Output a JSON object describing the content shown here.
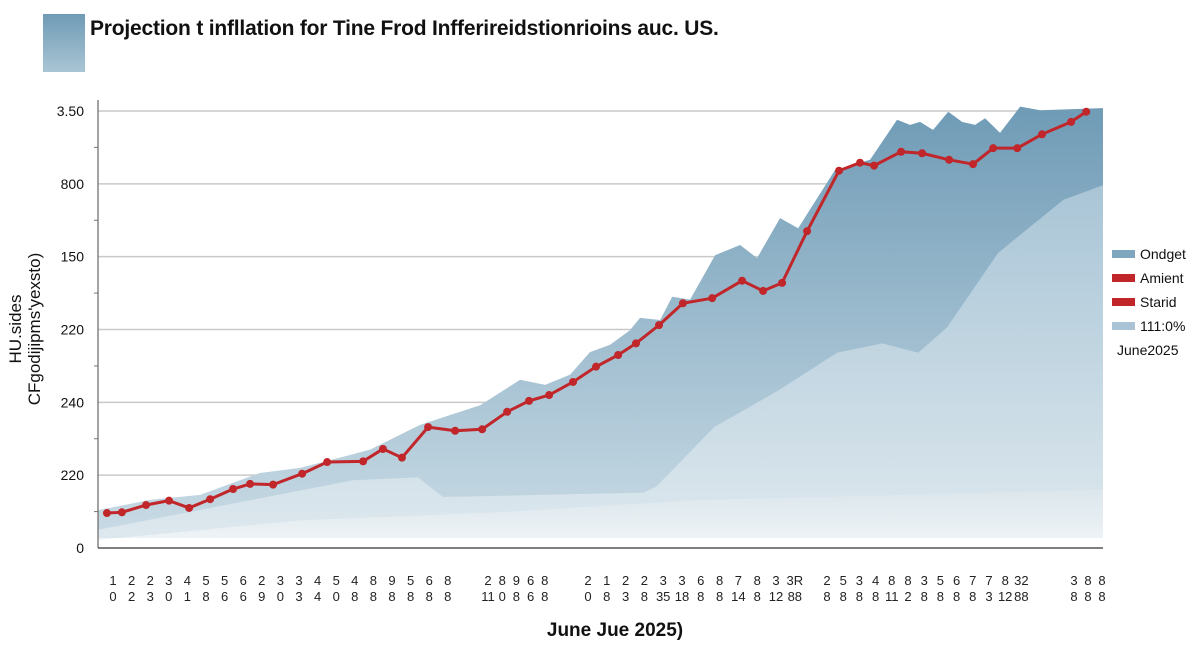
{
  "title": "Projection t infllation for Tine Frod Infferireidstionrioins auc. US.",
  "colors": {
    "title_block": "#7ea5bd",
    "area_dark": "#7aa3bc",
    "area_mid": "#b9d0dc",
    "area_light": "#dfe9ef",
    "line": "#c0262a",
    "grid": "#c8c8c8"
  },
  "chart_data": {
    "type": "area",
    "title": "Projection t infllation for Tine Frod Infferireidstionrioins auc. US.",
    "xlabel": "June Jue 2025)",
    "ylabel": [
      "HU.sides",
      "CFgodijipms'yexsto)"
    ],
    "grid": true,
    "legend_position": "right",
    "xlim": [
      0,
      45
    ],
    "ylim": [
      0,
      6
    ],
    "y_ticks": [
      {
        "value": 0,
        "label": "0"
      },
      {
        "value": 1,
        "label": "220"
      },
      {
        "value": 2,
        "label": "240"
      },
      {
        "value": 3,
        "label": "220"
      },
      {
        "value": 4,
        "label": "150"
      },
      {
        "value": 5,
        "label": "800"
      },
      {
        "value": 6,
        "label": "3.50"
      }
    ],
    "x_tick_labels": [
      [
        "1",
        "0"
      ],
      [
        "2",
        "2"
      ],
      [
        "2",
        "3"
      ],
      [
        "3",
        "0"
      ],
      [
        "4",
        "1"
      ],
      [
        "5",
        "8"
      ],
      [
        "5",
        "6"
      ],
      [
        "6",
        "6"
      ],
      [
        "2",
        "9"
      ],
      [
        "3",
        "0"
      ],
      [
        "3",
        "3"
      ],
      [
        "4",
        "4"
      ],
      [
        "5",
        "0"
      ],
      [
        "4",
        "8"
      ],
      [
        "8",
        "8"
      ],
      [
        "9",
        "8"
      ],
      [
        "5",
        "8"
      ],
      [
        "6",
        "8"
      ],
      [
        "8",
        "8"
      ],
      [
        "2",
        "11"
      ],
      [
        "8",
        "0"
      ],
      [
        "9",
        "8"
      ],
      [
        "6",
        "6"
      ],
      [
        "8",
        "8"
      ],
      [
        "2",
        "0"
      ],
      [
        "1",
        "8"
      ],
      [
        "2",
        "3"
      ],
      [
        "2",
        "8"
      ],
      [
        "3",
        "35"
      ],
      [
        "3",
        "18"
      ],
      [
        "6",
        "8"
      ],
      [
        "8",
        "8"
      ],
      [
        "7",
        "14"
      ],
      [
        "8",
        "8"
      ],
      [
        "3",
        "12"
      ],
      [
        "3R",
        "88"
      ],
      [
        "2",
        "8"
      ],
      [
        "5",
        "8"
      ],
      [
        "3",
        "8"
      ],
      [
        "4",
        "8"
      ],
      [
        "8",
        "11"
      ],
      [
        "8",
        "2"
      ],
      [
        "3",
        "8"
      ],
      [
        "5",
        "8"
      ],
      [
        "6",
        "8"
      ],
      [
        "7",
        "8"
      ],
      [
        "7",
        "3"
      ],
      [
        "8",
        "12"
      ],
      [
        "32",
        "88"
      ],
      [
        "3",
        "8"
      ],
      [
        "8",
        "8"
      ],
      [
        "8",
        "8"
      ]
    ],
    "legend": [
      {
        "label": "Ondget",
        "color": "#7ea6bf"
      },
      {
        "label": "Amient",
        "color": "#c0262a"
      },
      {
        "label": "Starid",
        "color": "#c0262a"
      },
      {
        "label": "111:0%",
        "color": "#a9c3d4"
      }
    ],
    "legend_note": "June2025",
    "series": [
      {
        "name": "Ondget",
        "kind": "area",
        "points": [
          [
            0,
            0.52
          ],
          [
            2.33,
            0.66
          ],
          [
            4.57,
            0.73
          ],
          [
            7.25,
            1.03
          ],
          [
            9.05,
            1.1
          ],
          [
            10.84,
            1.24
          ],
          [
            12.18,
            1.35
          ],
          [
            14.42,
            1.69
          ],
          [
            17.11,
            1.96
          ],
          [
            18.9,
            2.31
          ],
          [
            20.02,
            2.24
          ],
          [
            21.14,
            2.38
          ],
          [
            22.03,
            2.69
          ],
          [
            22.93,
            2.79
          ],
          [
            23.82,
            2.99
          ],
          [
            24.27,
            3.16
          ],
          [
            25.17,
            3.13
          ],
          [
            25.71,
            3.45
          ],
          [
            26.51,
            3.41
          ],
          [
            27.63,
            4.02
          ],
          [
            28.75,
            4.16
          ],
          [
            29.51,
            3.98
          ],
          [
            30.54,
            4.53
          ],
          [
            31.35,
            4.39
          ],
          [
            33.0,
            5.19
          ],
          [
            34.57,
            5.33
          ],
          [
            35.78,
            5.88
          ],
          [
            36.36,
            5.81
          ],
          [
            36.81,
            5.85
          ],
          [
            37.39,
            5.74
          ],
          [
            38.07,
            5.99
          ],
          [
            38.69,
            5.85
          ],
          [
            39.27,
            5.81
          ],
          [
            39.72,
            5.9
          ],
          [
            40.39,
            5.7
          ],
          [
            41.29,
            6.06
          ],
          [
            42.19,
            6.01
          ],
          [
            45,
            6.04
          ]
        ]
      },
      {
        "name": "111:0%",
        "kind": "area",
        "points": [
          [
            0,
            0.25
          ],
          [
            11.42,
            0.93
          ],
          [
            14.33,
            0.97
          ],
          [
            15.45,
            0.7
          ],
          [
            24.41,
            0.76
          ],
          [
            24.99,
            0.84
          ],
          [
            27.59,
            1.66
          ],
          [
            30.5,
            2.17
          ],
          [
            33.09,
            2.68
          ],
          [
            35.11,
            2.81
          ],
          [
            36.72,
            2.68
          ],
          [
            38.02,
            3.03
          ],
          [
            40.3,
            4.05
          ],
          [
            43.22,
            4.78
          ],
          [
            45,
            4.98
          ]
        ]
      },
      {
        "kind": "area",
        "points": [
          [
            0,
            0.11
          ],
          [
            9.05,
            0.38
          ],
          [
            18,
            0.49
          ],
          [
            26.96,
            0.66
          ],
          [
            35.92,
            0.73
          ],
          [
            45,
            0.8
          ]
        ]
      },
      {
        "name": "Amient",
        "kind": "line",
        "points": [
          [
            0.4,
            0.48
          ],
          [
            1.07,
            0.49
          ],
          [
            2.15,
            0.59
          ],
          [
            3.18,
            0.65
          ],
          [
            4.08,
            0.55
          ],
          [
            5.02,
            0.67
          ],
          [
            6.05,
            0.81
          ],
          [
            6.81,
            0.88
          ],
          [
            7.84,
            0.87
          ],
          [
            9.14,
            1.02
          ],
          [
            10.26,
            1.18
          ],
          [
            11.87,
            1.19
          ],
          [
            12.76,
            1.36
          ],
          [
            13.61,
            1.24
          ],
          [
            14.78,
            1.66
          ],
          [
            15.99,
            1.61
          ],
          [
            17.2,
            1.63
          ],
          [
            18.32,
            1.87
          ],
          [
            19.3,
            2.02
          ],
          [
            20.2,
            2.1
          ],
          [
            21.27,
            2.28
          ],
          [
            22.3,
            2.49
          ],
          [
            23.29,
            2.65
          ],
          [
            24.09,
            2.81
          ],
          [
            25.12,
            3.06
          ],
          [
            26.19,
            3.36
          ],
          [
            27.5,
            3.43
          ],
          [
            28.84,
            3.67
          ],
          [
            29.78,
            3.53
          ],
          [
            30.63,
            3.64
          ],
          [
            31.75,
            4.35
          ],
          [
            33.18,
            5.18
          ],
          [
            34.12,
            5.29
          ],
          [
            34.75,
            5.25
          ],
          [
            35.96,
            5.44
          ],
          [
            36.9,
            5.42
          ],
          [
            38.11,
            5.33
          ],
          [
            39.18,
            5.27
          ],
          [
            40.08,
            5.49
          ],
          [
            41.16,
            5.49
          ],
          [
            42.27,
            5.68
          ],
          [
            43.57,
            5.85
          ],
          [
            44.25,
            5.99
          ]
        ]
      }
    ]
  }
}
